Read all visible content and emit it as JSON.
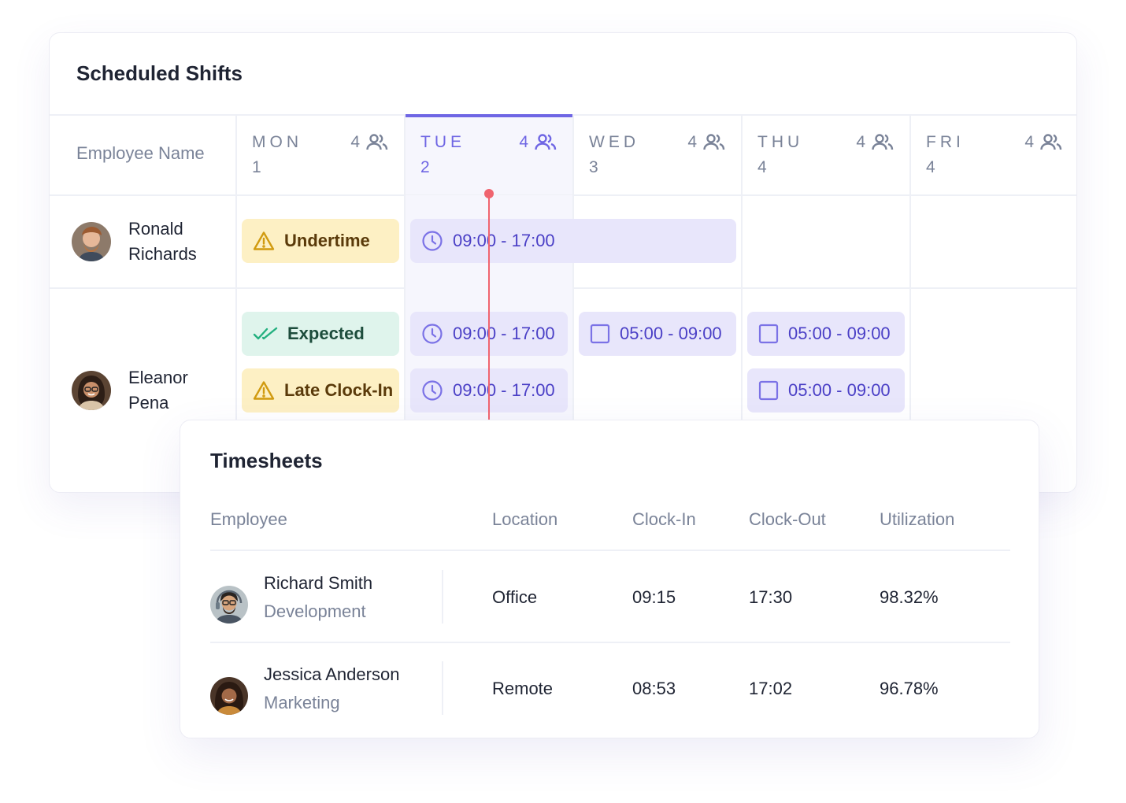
{
  "shifts": {
    "title": "Scheduled Shifts",
    "employee_header": "Employee Name",
    "days": [
      {
        "name": "MON",
        "date": "1",
        "count": "4",
        "active": false
      },
      {
        "name": "TUE",
        "date": "2",
        "count": "4",
        "active": true
      },
      {
        "name": "WED",
        "date": "3",
        "count": "4",
        "active": false
      },
      {
        "name": "THU",
        "date": "4",
        "count": "4",
        "active": false
      },
      {
        "name": "FRI",
        "date": "4",
        "count": "4",
        "active": false
      }
    ],
    "rows": [
      {
        "first_name": "Ronald",
        "last_name": "Richards",
        "mon_status": "Undertime",
        "tue_wed_shift": "09:00 - 17:00"
      },
      {
        "first_name": "Eleanor",
        "last_name": "Pena",
        "mon_status_1": "Expected",
        "mon_status_2": "Late Clock-In",
        "tue_shift_1": "09:00 - 17:00",
        "tue_shift_2": "09:00 - 17:00",
        "wed_shift_1": "05:00 - 09:00",
        "thu_shift_1": "05:00 - 09:00",
        "thu_shift_2": "05:00 - 09:00"
      }
    ],
    "colors": {
      "accent": "#6f66e4",
      "now_line": "#f0646f",
      "warning_bg": "#fdf0c4",
      "ok_bg": "#dff4ec",
      "shift_bg": "#e8e6fb"
    }
  },
  "timesheets": {
    "title": "Timesheets",
    "columns": [
      "Employee",
      "Location",
      "Clock-In",
      "Clock-Out",
      "Utilization"
    ],
    "rows": [
      {
        "name": "Richard Smith",
        "department": "Development",
        "location": "Office",
        "clock_in": "09:15",
        "clock_out": "17:30",
        "utilization": "98.32%"
      },
      {
        "name": "Jessica Anderson",
        "department": "Marketing",
        "location": "Remote",
        "clock_in": "08:53",
        "clock_out": "17:02",
        "utilization": "96.78%"
      }
    ]
  },
  "icons": {
    "people": "people-icon",
    "warning": "warning-icon",
    "check": "double-check-icon",
    "clock": "clock-icon",
    "square": "square-icon"
  }
}
